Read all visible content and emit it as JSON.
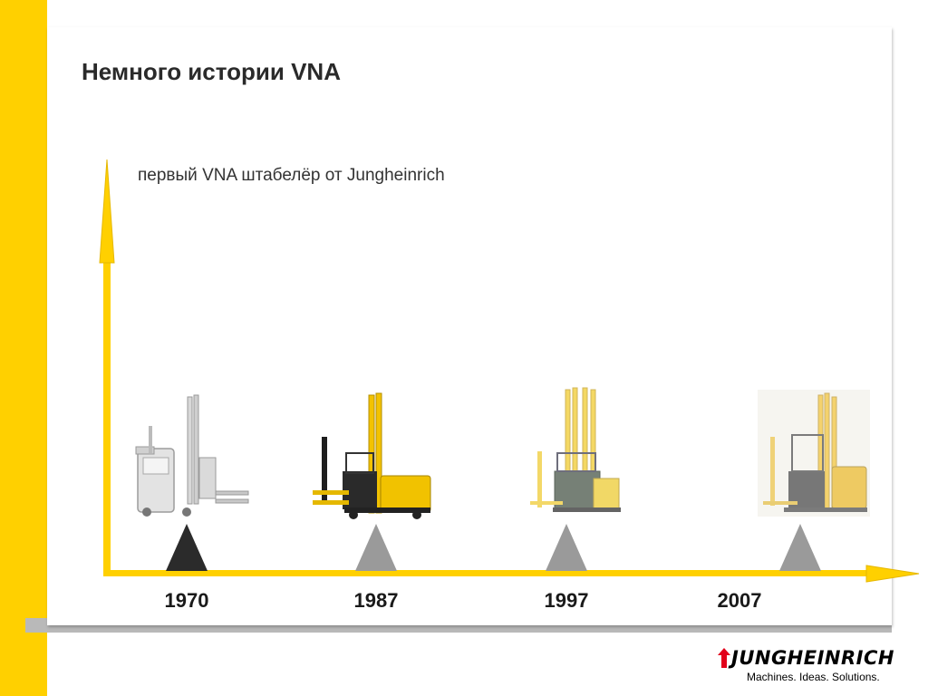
{
  "slide": {
    "title": "Немного истории VNA",
    "subtitle": "первый VNA штабелёр от Jungheinrich"
  },
  "timeline": {
    "years": [
      "1970",
      "1987",
      "1997",
      "2007"
    ],
    "active_index": 0
  },
  "brand": {
    "name": "JUNGHEINRICH",
    "tagline": "Machines. Ideas. Solutions."
  },
  "colors": {
    "accent_yellow": "#FFD000",
    "marker_active": "#2b2b2b",
    "marker_inactive": "#9a9a9a",
    "brand_red": "#e2001a"
  },
  "icons": [
    "forklift-1970-icon",
    "forklift-1987-icon",
    "forklift-1997-icon",
    "forklift-2007-icon",
    "jungheinrich-logo-icon"
  ]
}
